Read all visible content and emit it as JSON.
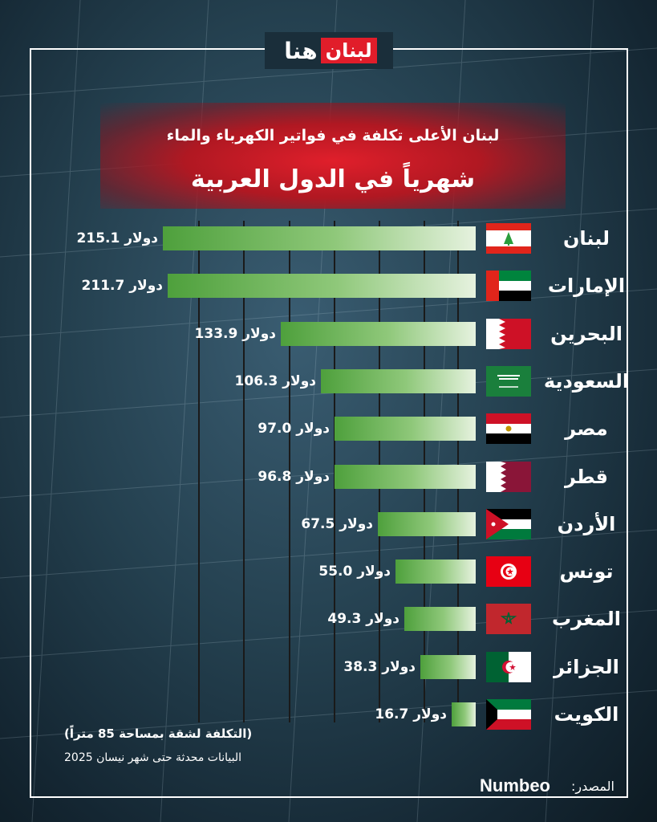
{
  "brand": {
    "logo_part1": "هنا",
    "logo_part2": "لبنان"
  },
  "title": {
    "line1": "لبنان الأعلى تكلفة في فواتير الكهرباء والماء",
    "line2": "شهرياً في الدول العربية"
  },
  "chart_data": {
    "type": "bar",
    "orientation": "horizontal",
    "unit": "دولار",
    "categories": [
      "لبنان",
      "الإمارات",
      "البحرين",
      "السعودية",
      "مصر",
      "قطر",
      "الأردن",
      "تونس",
      "المغرب",
      "الجزائر",
      "الكويت"
    ],
    "values": [
      215.1,
      211.7,
      133.9,
      106.3,
      97.0,
      96.8,
      67.5,
      55.0,
      49.3,
      38.3,
      16.7
    ],
    "labels": [
      "215.1 دولار",
      "211.7 دولار",
      "133.9 دولار",
      "106.3 دولار",
      "97.0 دولار",
      "96.8 دولار",
      "67.5 دولار",
      "55.0 دولار",
      "49.3 دولار",
      "38.3 دولار",
      "16.7 دولار"
    ],
    "flags": [
      "lebanon-flag",
      "uae-flag",
      "bahrain-flag",
      "saudi-flag",
      "egypt-flag",
      "qatar-flag",
      "jordan-flag",
      "tunisia-flag",
      "morocco-flag",
      "algeria-flag",
      "kuwait-flag"
    ],
    "bar_color_start": "#4ea03c",
    "bar_color_end": "#e6f2df"
  },
  "footnote": {
    "line1": "(التكلفة لشقة بمساحة 85 متراً)",
    "line2": "البيانات محدثة حتى شهر نيسان 2025"
  },
  "source": {
    "label": "المصدر:",
    "name": "Numbeo"
  },
  "colors": {
    "accent_red": "#e01f2b",
    "background": "#24404f"
  }
}
